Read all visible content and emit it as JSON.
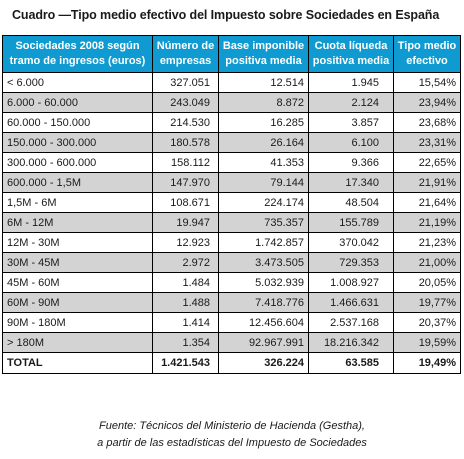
{
  "title": "Cuadro —Tipo medio efectivo del Impuesto sobre Sociedades en España",
  "table": {
    "headers": [
      "Sociedades 2008 según tramo de ingresos (euros)",
      "Número de empresas",
      "Base imponible positiva media",
      "Cuota líqueda positiva media",
      "Tipo medio efectivo"
    ],
    "rows": [
      {
        "range": "< 6.000",
        "empresas": "327.051",
        "base": "12.514",
        "cuota": "1.945",
        "tipo": "15,54%"
      },
      {
        "range": "6.000 - 60.000",
        "empresas": "243.049",
        "base": "8.872",
        "cuota": "2.124",
        "tipo": "23,94%"
      },
      {
        "range": "60.000 - 150.000",
        "empresas": "214.530",
        "base": "16.285",
        "cuota": "3.857",
        "tipo": "23,68%"
      },
      {
        "range": "150.000 - 300.000",
        "empresas": "180.578",
        "base": "26.164",
        "cuota": "6.100",
        "tipo": "23,31%"
      },
      {
        "range": "300.000 - 600.000",
        "empresas": "158.112",
        "base": "41.353",
        "cuota": "9.366",
        "tipo": "22,65%"
      },
      {
        "range": "600.000 - 1,5M",
        "empresas": "147.970",
        "base": "79.144",
        "cuota": "17.340",
        "tipo": "21,91%"
      },
      {
        "range": "1,5M - 6M",
        "empresas": "108.671",
        "base": "224.174",
        "cuota": "48.504",
        "tipo": "21,64%"
      },
      {
        "range": "6M - 12M",
        "empresas": "19.947",
        "base": "735.357",
        "cuota": "155.789",
        "tipo": "21,19%"
      },
      {
        "range": "12M - 30M",
        "empresas": "12.923",
        "base": "1.742.857",
        "cuota": "370.042",
        "tipo": "21,23%"
      },
      {
        "range": "30M - 45M",
        "empresas": "2.972",
        "base": "3.473.505",
        "cuota": "729.353",
        "tipo": "21,00%"
      },
      {
        "range": "45M - 60M",
        "empresas": "1.484",
        "base": "5.032.939",
        "cuota": "1.008.927",
        "tipo": "20,05%"
      },
      {
        "range": "60M - 90M",
        "empresas": "1.488",
        "base": "7.418.776",
        "cuota": "1.466.631",
        "tipo": "19,77%"
      },
      {
        "range": "90M - 180M",
        "empresas": "1.414",
        "base": "12.456.604",
        "cuota": "2.537.168",
        "tipo": "20,37%"
      },
      {
        "range": "> 180M",
        "empresas": "1.354",
        "base": "92.967.991",
        "cuota": "18.216.342",
        "tipo": "19,59%"
      }
    ],
    "total": {
      "range": "TOTAL",
      "empresas": "1.421.543",
      "base": "326.224",
      "cuota": "63.585",
      "tipo": "19,49%"
    }
  },
  "source": {
    "line1": "Fuente: Técnicos del Ministerio de Hacienda (Gestha),",
    "line2": "a partir de las estadísticas del Impuesto de Sociedades"
  },
  "colors": {
    "header_bg": "#0f9bd1",
    "header_text": "#ffffff",
    "band_gray": "#d3d3d3",
    "band_white": "#ffffff",
    "border": "#000000"
  }
}
